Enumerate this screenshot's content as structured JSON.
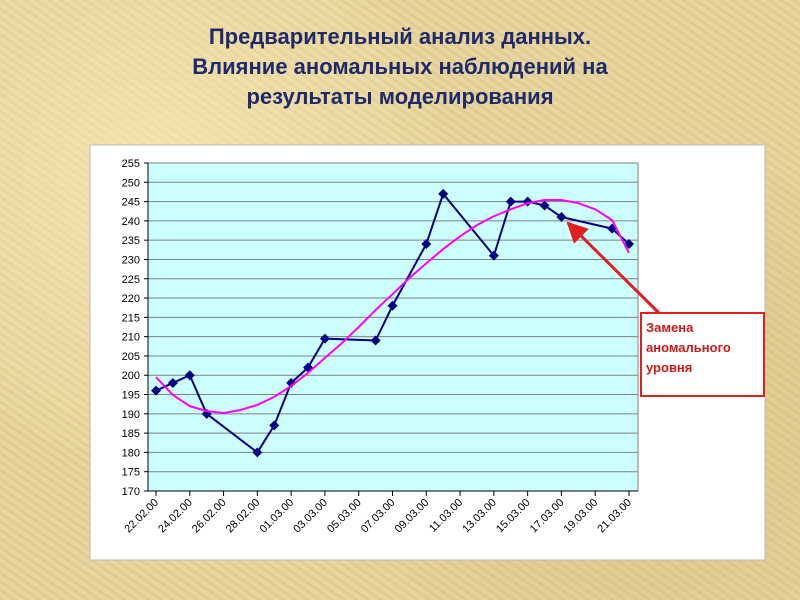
{
  "chart_data": {
    "type": "line",
    "title": [
      "Предварительный анализ данных.",
      "Влияние аномальных наблюдений на",
      "результаты моделирования"
    ],
    "annotation": "Замена аномального уровня",
    "xlim": [
      "22.02.00",
      "21.03.00"
    ],
    "xticks": [
      "22.02.00",
      "24.02.00",
      "26.02.00",
      "28.02.00",
      "01.03.00",
      "03.03.00",
      "05.03.00",
      "07.03.00",
      "09.03.00",
      "11.03.00",
      "13.03.00",
      "15.03.00",
      "17.03.00",
      "19.03.00",
      "21.03.00"
    ],
    "ylim": [
      170,
      255
    ],
    "yticks": [
      170,
      175,
      180,
      185,
      190,
      195,
      200,
      205,
      210,
      215,
      220,
      225,
      230,
      235,
      240,
      245,
      250,
      255
    ],
    "grid": true,
    "series": [
      {
        "color": "#000080",
        "marker": "diamond",
        "x": [
          "22.02.00",
          "23.02.00",
          "24.02.00",
          "25.02.00",
          "28.02.00",
          "29.02.00",
          "01.03.00",
          "02.03.00",
          "03.03.00",
          "06.03.00",
          "07.03.00",
          "09.03.00",
          "10.03.00",
          "13.03.00",
          "14.03.00",
          "15.03.00",
          "16.03.00",
          "17.03.00",
          "20.03.00",
          "21.03.00"
        ],
        "values": [
          196,
          198,
          200,
          190,
          180,
          187,
          198,
          202,
          209.5,
          209,
          218,
          234,
          247,
          231,
          245,
          245,
          244,
          241,
          238,
          234
        ]
      },
      {
        "color": "#ff00ff",
        "marker": "none",
        "x": [
          "22.02.00",
          "23.02.00",
          "24.02.00",
          "25.02.00",
          "26.02.00",
          "27.02.00",
          "28.02.00",
          "29.02.00",
          "01.03.00",
          "02.03.00",
          "03.03.00",
          "04.03.00",
          "05.03.00",
          "06.03.00",
          "07.03.00",
          "08.03.00",
          "09.03.00",
          "10.03.00",
          "11.03.00",
          "12.03.00",
          "13.03.00",
          "14.03.00",
          "15.03.00",
          "16.03.00",
          "17.03.00",
          "18.03.00",
          "19.03.00",
          "20.03.00",
          "21.03.00"
        ],
        "values": [
          199.5,
          194.9,
          192,
          190.7,
          190.2,
          191,
          192.3,
          194.4,
          197.2,
          200.6,
          204.5,
          208.3,
          212.5,
          216.9,
          221,
          225.2,
          229,
          232.7,
          236,
          238.9,
          241.2,
          243,
          244.6,
          245.4,
          245.4,
          244.6,
          243,
          240.2,
          231.7
        ]
      }
    ]
  }
}
